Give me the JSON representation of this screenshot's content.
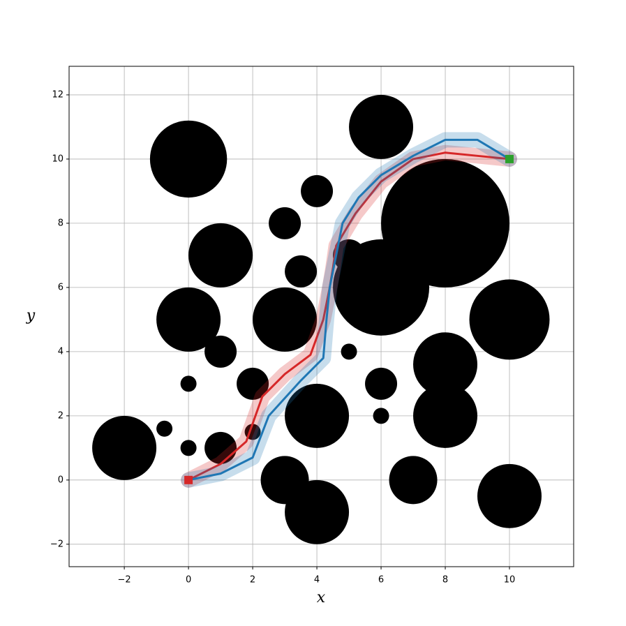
{
  "chart_data": {
    "type": "obstacles",
    "xlabel": "x",
    "ylabel": "y",
    "xlim": [
      -3.72,
      12.0
    ],
    "ylim": [
      -2.7,
      12.89
    ],
    "xticks": [
      {
        "value": -2,
        "label": "−2"
      },
      0,
      2,
      4,
      6,
      8,
      10
    ],
    "yticks": [
      {
        "value": -2,
        "label": "−2"
      },
      0,
      2,
      4,
      6,
      8,
      10,
      12
    ],
    "grid": true,
    "obstacles": {
      "color": "#000000",
      "x": [
        0,
        1,
        0,
        1,
        0,
        0,
        -0.75,
        -2,
        1,
        2,
        2,
        3,
        3.5,
        3,
        4,
        4,
        3,
        4,
        5,
        5,
        6,
        6,
        8,
        10,
        8,
        8,
        6,
        6,
        7,
        10
      ],
      "y": [
        10,
        7,
        5,
        4,
        3,
        1,
        1.6,
        1,
        1,
        3,
        1.5,
        5,
        6.5,
        8,
        9,
        2,
        0,
        -1,
        7,
        4,
        6,
        11,
        8,
        5,
        3.6,
        2,
        3,
        2,
        0,
        -0.5
      ],
      "r": [
        1.2,
        1.0,
        1.0,
        0.5,
        0.25,
        0.25,
        0.25,
        1.0,
        0.5,
        0.5,
        0.25,
        1.0,
        0.5,
        0.5,
        0.5,
        1.0,
        0.75,
        1.0,
        0.5,
        0.25,
        1.5,
        1.0,
        2.0,
        1.25,
        1.0,
        1.0,
        0.5,
        0.25,
        0.75,
        1.0
      ]
    },
    "series": [
      {
        "color": "#d62728",
        "x": [
          0,
          1,
          1.8,
          2.3,
          3,
          3.8,
          4.2,
          4.4,
          4.5,
          4.6,
          5.2,
          6,
          7,
          8,
          9,
          10
        ],
        "y": [
          0,
          0.5,
          1.2,
          2.6,
          3.3,
          3.9,
          5,
          6,
          6.6,
          7.3,
          8.3,
          9.3,
          10,
          10.2,
          10.1,
          10
        ]
      },
      {
        "color": "#1f77b4",
        "x": [
          0,
          1,
          2,
          2.5,
          3.5,
          4.2,
          4.3,
          4.4,
          4.6,
          4.8,
          5.3,
          6,
          7,
          8,
          9,
          10
        ],
        "y": [
          0,
          0.2,
          0.7,
          2,
          3.1,
          3.8,
          5,
          6,
          7,
          8,
          8.8,
          9.5,
          10.1,
          10.6,
          10.6,
          10
        ]
      }
    ],
    "markers": {
      "x": [
        0,
        10
      ],
      "y": [
        0,
        10
      ],
      "colors": [
        "#d62728",
        "#2ca02c"
      ]
    }
  }
}
